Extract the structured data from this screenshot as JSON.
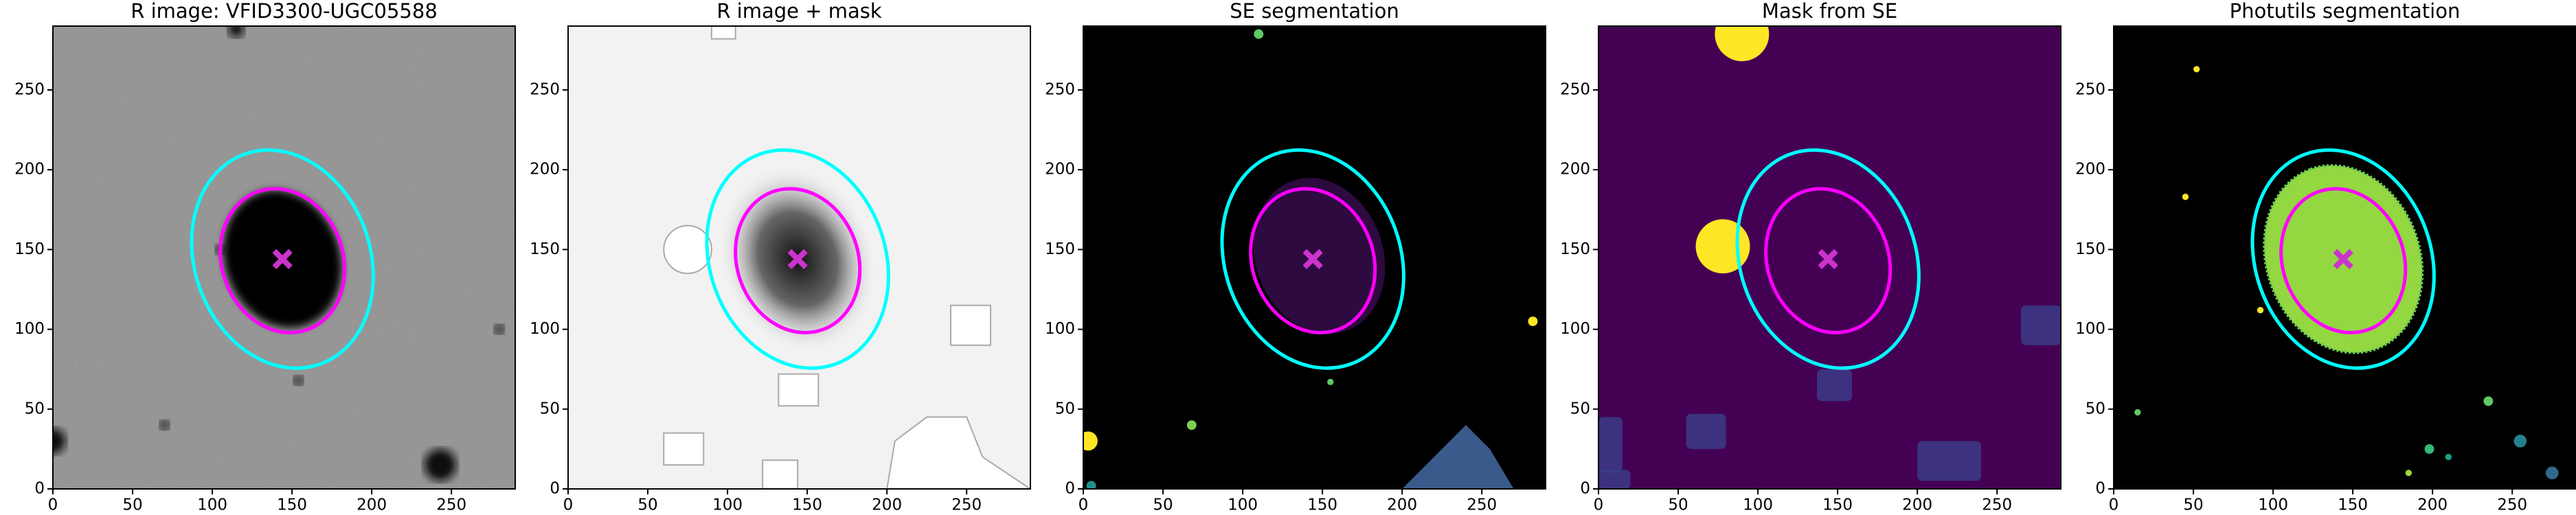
{
  "chart_data": [
    {
      "type": "image",
      "title": "R image: VFID3300-UGC05588",
      "xlim": [
        0,
        290
      ],
      "ylim": [
        0,
        290
      ],
      "xticks": [
        0,
        50,
        100,
        150,
        200,
        250
      ],
      "yticks": [
        0,
        50,
        100,
        150,
        200,
        250
      ],
      "ellipses": [
        {
          "color": "#00ffff",
          "x": 144,
          "y": 144,
          "a": 70,
          "b": 55,
          "angle": 110
        },
        {
          "color": "#ff00ff",
          "x": 144,
          "y": 143,
          "a": 46,
          "b": 38,
          "angle": 110
        }
      ],
      "marker": {
        "x": 144,
        "y": 144,
        "color": "#cc33cc"
      }
    },
    {
      "type": "image",
      "title": "R image + mask",
      "xlim": [
        0,
        290
      ],
      "ylim": [
        0,
        290
      ],
      "xticks": [
        0,
        50,
        100,
        150,
        200,
        250
      ],
      "yticks": [
        0,
        50,
        100,
        150,
        200,
        250
      ],
      "ellipses": [
        {
          "color": "#00ffff",
          "x": 144,
          "y": 144,
          "a": 70,
          "b": 55,
          "angle": 110
        },
        {
          "color": "#ff00ff",
          "x": 144,
          "y": 143,
          "a": 46,
          "b": 38,
          "angle": 110
        }
      ],
      "marker": {
        "x": 144,
        "y": 144,
        "color": "#cc33cc"
      }
    },
    {
      "type": "image",
      "title": "SE segmentation",
      "xlim": [
        0,
        290
      ],
      "ylim": [
        0,
        290
      ],
      "xticks": [
        0,
        50,
        100,
        150,
        200,
        250
      ],
      "yticks": [
        0,
        50,
        100,
        150,
        200,
        250
      ],
      "ellipses": [
        {
          "color": "#00ffff",
          "x": 144,
          "y": 144,
          "a": 70,
          "b": 55,
          "angle": 110
        },
        {
          "color": "#ff00ff",
          "x": 144,
          "y": 143,
          "a": 46,
          "b": 38,
          "angle": 110
        }
      ],
      "marker": {
        "x": 144,
        "y": 144,
        "color": "#cc33cc"
      }
    },
    {
      "type": "image",
      "title": "Mask from SE",
      "xlim": [
        0,
        290
      ],
      "ylim": [
        0,
        290
      ],
      "xticks": [
        0,
        50,
        100,
        150,
        200,
        250
      ],
      "yticks": [
        0,
        50,
        100,
        150,
        200,
        250
      ],
      "ellipses": [
        {
          "color": "#00ffff",
          "x": 144,
          "y": 144,
          "a": 70,
          "b": 55,
          "angle": 110
        },
        {
          "color": "#ff00ff",
          "x": 144,
          "y": 143,
          "a": 46,
          "b": 38,
          "angle": 110
        }
      ],
      "marker": {
        "x": 144,
        "y": 144,
        "color": "#cc33cc"
      }
    },
    {
      "type": "image",
      "title": "Photutils segmentation",
      "xlim": [
        0,
        290
      ],
      "ylim": [
        0,
        290
      ],
      "xticks": [
        0,
        50,
        100,
        150,
        200,
        250
      ],
      "yticks": [
        0,
        50,
        100,
        150,
        200,
        250
      ],
      "ellipses": [
        {
          "color": "#00ffff",
          "x": 144,
          "y": 144,
          "a": 70,
          "b": 55,
          "angle": 110
        },
        {
          "color": "#ff00ff",
          "x": 144,
          "y": 143,
          "a": 46,
          "b": 38,
          "angle": 110
        }
      ],
      "marker": {
        "x": 144,
        "y": 144,
        "color": "#cc33cc"
      }
    }
  ]
}
